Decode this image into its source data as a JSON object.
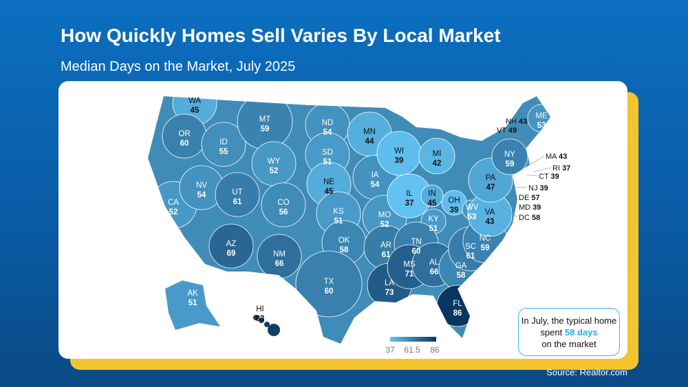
{
  "title": "How Quickly Homes Sell Varies By Local Market",
  "subtitle": "Median Days on the Market, July 2025",
  "colors": {
    "low": "#62c3f2",
    "high": "#0a3560",
    "accent": "#2aa8e0",
    "highlight": "#f4c430"
  },
  "legend": {
    "min": "37",
    "mid": "61.5",
    "max": "86"
  },
  "callout": {
    "pre": "In July, the typical home spent",
    "highlight": "58 days",
    "post": "on the market"
  },
  "source": "Source: Realtor.com",
  "states": [
    {
      "abbr": "WA",
      "value": 45
    },
    {
      "abbr": "OR",
      "value": 60
    },
    {
      "abbr": "CA",
      "value": 52
    },
    {
      "abbr": "NV",
      "value": 54
    },
    {
      "abbr": "ID",
      "value": 55
    },
    {
      "abbr": "MT",
      "value": 59
    },
    {
      "abbr": "WY",
      "value": 52
    },
    {
      "abbr": "UT",
      "value": 61
    },
    {
      "abbr": "AZ",
      "value": 69
    },
    {
      "abbr": "CO",
      "value": 56
    },
    {
      "abbr": "NM",
      "value": 66
    },
    {
      "abbr": "ND",
      "value": 54
    },
    {
      "abbr": "SD",
      "value": 51
    },
    {
      "abbr": "NE",
      "value": 45
    },
    {
      "abbr": "KS",
      "value": 51
    },
    {
      "abbr": "OK",
      "value": 58
    },
    {
      "abbr": "TX",
      "value": 60
    },
    {
      "abbr": "MN",
      "value": 44
    },
    {
      "abbr": "IA",
      "value": 54
    },
    {
      "abbr": "MO",
      "value": 52
    },
    {
      "abbr": "AR",
      "value": 61
    },
    {
      "abbr": "LA",
      "value": 73
    },
    {
      "abbr": "WI",
      "value": 39
    },
    {
      "abbr": "IL",
      "value": 37
    },
    {
      "abbr": "MI",
      "value": 42
    },
    {
      "abbr": "IN",
      "value": 45
    },
    {
      "abbr": "OH",
      "value": 39
    },
    {
      "abbr": "KY",
      "value": 51
    },
    {
      "abbr": "TN",
      "value": 60
    },
    {
      "abbr": "MS",
      "value": 71
    },
    {
      "abbr": "AL",
      "value": 66
    },
    {
      "abbr": "GA",
      "value": 58
    },
    {
      "abbr": "SC",
      "value": 61
    },
    {
      "abbr": "NC",
      "value": 59
    },
    {
      "abbr": "WV",
      "value": 53
    },
    {
      "abbr": "VA",
      "value": 43
    },
    {
      "abbr": "PA",
      "value": 47
    },
    {
      "abbr": "NY",
      "value": 59
    },
    {
      "abbr": "ME",
      "value": 53
    },
    {
      "abbr": "FL",
      "value": 86
    },
    {
      "abbr": "AK",
      "value": 51
    },
    {
      "abbr": "HI",
      "value": 83
    },
    {
      "abbr": "NH",
      "value": 43
    },
    {
      "abbr": "VT",
      "value": 49
    },
    {
      "abbr": "MA",
      "value": 43
    },
    {
      "abbr": "RI",
      "value": 37
    },
    {
      "abbr": "CT",
      "value": 39
    },
    {
      "abbr": "NJ",
      "value": 39
    },
    {
      "abbr": "DE",
      "value": 57
    },
    {
      "abbr": "MD",
      "value": 39
    },
    {
      "abbr": "DC",
      "value": 58
    }
  ]
}
